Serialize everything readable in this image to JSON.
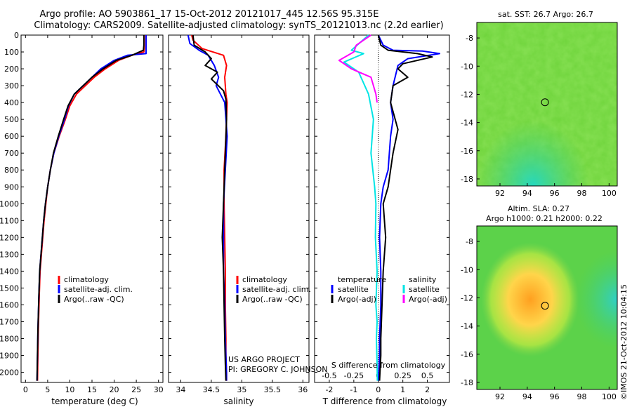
{
  "figure": {
    "title_line1": "Argo profile: AO 5903861_17 15-Oct-2012 20121017_445 12.56S 95.315E",
    "title_line2": "Climatology: CARS2009. Satellite-adjusted climatology: synTS_20121013.nc (2.2d earlier)",
    "credit_line1": "US ARGO PROJECT",
    "credit_line2": "PI: GREGORY C. JOHNSON",
    "side_stamp": "©IMOS 21-Oct-2012 10:04:15"
  },
  "colors": {
    "climatology": "#ff0000",
    "satellite": "#0000ff",
    "argo": "#000000",
    "argo_s_adj": "#ff00ff",
    "satellite_s": "#00e5e5"
  },
  "chart_data": [
    {
      "id": "temperature",
      "type": "line",
      "xlabel": "temperature (deg C)",
      "ylabel": "",
      "xlim": [
        -1,
        31
      ],
      "ylim": [
        2060,
        0
      ],
      "xticks": [
        0,
        5,
        10,
        15,
        20,
        25,
        30
      ],
      "yticks": [
        0,
        100,
        200,
        300,
        400,
        500,
        600,
        700,
        800,
        900,
        1000,
        1100,
        1200,
        1300,
        1400,
        1500,
        1600,
        1700,
        1800,
        1900,
        2000
      ],
      "legend": [
        "climatology",
        "satellite-adj. clim.",
        "Argo(..raw -QC)"
      ],
      "series": [
        {
          "name": "climatology",
          "color": "#ff0000",
          "x": [
            26.8,
            26.8,
            26.7,
            24,
            21,
            18,
            15.5,
            13.5,
            11.5,
            10,
            9,
            7.6,
            6.4,
            5.6,
            5,
            4.6,
            4.2,
            3.9,
            3.6,
            3.3,
            3.1,
            2.9,
            2.7
          ],
          "y": [
            0,
            80,
            100,
            120,
            150,
            200,
            250,
            300,
            350,
            420,
            500,
            600,
            700,
            800,
            900,
            1000,
            1100,
            1200,
            1300,
            1400,
            1550,
            1750,
            2050
          ]
        },
        {
          "name": "satellite-adj. clim.",
          "color": "#0000ff",
          "x": [
            27.2,
            27.2,
            27.2,
            23,
            20,
            17,
            15,
            13,
            11,
            9.7,
            8.8,
            7.5,
            6.4,
            5.6,
            5,
            4.5,
            4.1,
            3.8,
            3.5,
            3.2,
            3,
            2.8,
            2.6
          ],
          "y": [
            0,
            80,
            110,
            120,
            150,
            200,
            250,
            300,
            350,
            420,
            500,
            600,
            700,
            800,
            900,
            1000,
            1100,
            1200,
            1300,
            1400,
            1550,
            1750,
            2050
          ]
        },
        {
          "name": "Argo(..raw -QC)",
          "color": "#000000",
          "x": [
            26.7,
            26.7,
            26.6,
            24,
            20.5,
            17.5,
            15,
            13,
            11,
            9.6,
            8.6,
            7.4,
            6.3,
            5.6,
            5,
            4.5,
            4.1,
            3.8,
            3.5,
            3.2,
            3,
            2.8,
            2.6
          ],
          "y": [
            0,
            60,
            90,
            120,
            150,
            200,
            250,
            300,
            350,
            420,
            500,
            600,
            700,
            800,
            900,
            1000,
            1100,
            1200,
            1300,
            1400,
            1550,
            1750,
            2050
          ]
        }
      ]
    },
    {
      "id": "salinity",
      "type": "line",
      "xlabel": "salinity",
      "ylabel": "",
      "xlim": [
        33.8,
        36.1
      ],
      "ylim": [
        2060,
        0
      ],
      "xticks": [
        34,
        34.5,
        35,
        35.5,
        36
      ],
      "legend": [
        "climatology",
        "satellite-adj. clim.",
        "Argo(..raw -QC)"
      ],
      "series": [
        {
          "name": "climatology",
          "color": "#ff0000",
          "x": [
            34.18,
            34.2,
            34.35,
            34.7,
            34.75,
            34.72,
            34.74,
            34.76,
            34.74,
            34.71,
            34.71,
            34.72,
            34.73,
            34.73,
            34.74,
            34.74,
            34.75,
            34.75
          ],
          "y": [
            0,
            30,
            80,
            120,
            180,
            250,
            350,
            400,
            600,
            800,
            1000,
            1200,
            1400,
            1600,
            1800,
            1900,
            2000,
            2050
          ]
        },
        {
          "name": "satellite-adj. clim.",
          "color": "#0000ff",
          "x": [
            34.12,
            34.15,
            34.3,
            34.45,
            34.55,
            34.62,
            34.58,
            34.65,
            34.72,
            34.76,
            34.73,
            34.7,
            34.7,
            34.7,
            34.72,
            34.73,
            34.74,
            34.75,
            34.75
          ],
          "y": [
            0,
            50,
            90,
            120,
            180,
            250,
            300,
            350,
            400,
            600,
            800,
            1000,
            1200,
            1400,
            1600,
            1800,
            1900,
            2000,
            2050
          ]
        },
        {
          "name": "Argo(..raw -QC)",
          "color": "#000000",
          "x": [
            34.2,
            34.22,
            34.4,
            34.5,
            34.4,
            34.6,
            34.5,
            34.7,
            34.74,
            34.75,
            34.72,
            34.7,
            34.68,
            34.7,
            34.71,
            34.72,
            34.73,
            34.74
          ],
          "y": [
            0,
            60,
            100,
            140,
            180,
            220,
            260,
            330,
            380,
            500,
            800,
            1000,
            1200,
            1400,
            1600,
            1800,
            1950,
            2050
          ]
        }
      ]
    },
    {
      "id": "difference",
      "type": "line",
      "xlabel": "T difference from climatology",
      "xlabel_top": "S difference from climatology",
      "xlim": [
        -2.6,
        2.9
      ],
      "ylim": [
        2060,
        0
      ],
      "xticks": [
        -2,
        -1,
        0,
        1,
        2
      ],
      "xticks_top_labels": [
        "-0.5",
        "-0.25",
        "0",
        "0.25",
        "0.5"
      ],
      "xticks_top_pos": [
        -2,
        -1,
        0,
        1,
        2
      ],
      "legend_t_title": "temperature",
      "legend_s_title": "salinity",
      "legend_t": [
        "satellite",
        "Argo(-adj)"
      ],
      "legend_s": [
        "satellite",
        "Argo(-adj)"
      ],
      "series": [
        {
          "name": "T satellite",
          "color": "#0000ff",
          "x": [
            0,
            0.2,
            0.6,
            1.8,
            2.5,
            1.2,
            0.8,
            0.6,
            0.5,
            0.6,
            0.5,
            0.4,
            0.2,
            0.1,
            0.05,
            0.1,
            0.1,
            0.05,
            0.05,
            0
          ],
          "y": [
            0,
            60,
            90,
            95,
            110,
            140,
            180,
            300,
            400,
            500,
            600,
            800,
            900,
            1000,
            1200,
            1400,
            1600,
            1800,
            1900,
            2050
          ]
        },
        {
          "name": "T Argo(-adj)",
          "color": "#000000",
          "x": [
            0,
            0.1,
            0.4,
            1.6,
            2.2,
            1,
            0.8,
            1.2,
            0.6,
            0.5,
            0.8,
            0.6,
            0.4,
            0.2,
            0.3,
            0.2,
            0.15,
            0.1,
            0.1,
            0.05
          ],
          "y": [
            0,
            60,
            90,
            110,
            130,
            170,
            200,
            250,
            300,
            400,
            560,
            700,
            900,
            1000,
            1200,
            1400,
            1600,
            1800,
            1900,
            2050
          ]
        },
        {
          "name": "S satellite",
          "color": "#00e5e5",
          "x": [
            -0.4,
            -1.1,
            -0.6,
            -1.4,
            -0.8,
            -0.4,
            -0.2,
            -0.3,
            -0.15,
            -0.1,
            -0.12,
            -0.05,
            -0.1,
            -0.05,
            -0.08,
            -0.05,
            -0.04
          ],
          "y": [
            0,
            90,
            110,
            160,
            220,
            350,
            500,
            700,
            900,
            1000,
            1200,
            1400,
            1600,
            1700,
            1800,
            1950,
            2050
          ]
        },
        {
          "name": "S Argo(-adj)",
          "color": "#ff00ff",
          "x": [
            -0.3,
            -0.9,
            -1,
            -1.6,
            -1.1,
            -0.3,
            -0.2,
            -0.1,
            -0.05
          ],
          "y": [
            0,
            60,
            100,
            150,
            200,
            250,
            300,
            350,
            400
          ]
        }
      ]
    }
  ],
  "maps": [
    {
      "title": "sat. SST: 26.7  Argo: 26.7",
      "xticks": [
        92,
        94,
        96,
        98,
        100
      ],
      "yticks": [
        -8,
        -10,
        -12,
        -14,
        -16,
        -18
      ],
      "xlim": [
        90.3,
        100.6
      ],
      "ylim": [
        -18.5,
        -6.9
      ],
      "marker": [
        95.3,
        -12.56
      ]
    },
    {
      "title_line1": "Altim. SLA: 0.27",
      "title_line2": "Argo h1000: 0.21 h2000: 0.22",
      "xticks": [
        92,
        94,
        96,
        98,
        100
      ],
      "yticks": [
        -8,
        -10,
        -12,
        -14,
        -16,
        -18
      ],
      "xlim": [
        90.3,
        100.6
      ],
      "ylim": [
        -18.5,
        -6.9
      ],
      "marker": [
        95.3,
        -12.56
      ]
    }
  ]
}
